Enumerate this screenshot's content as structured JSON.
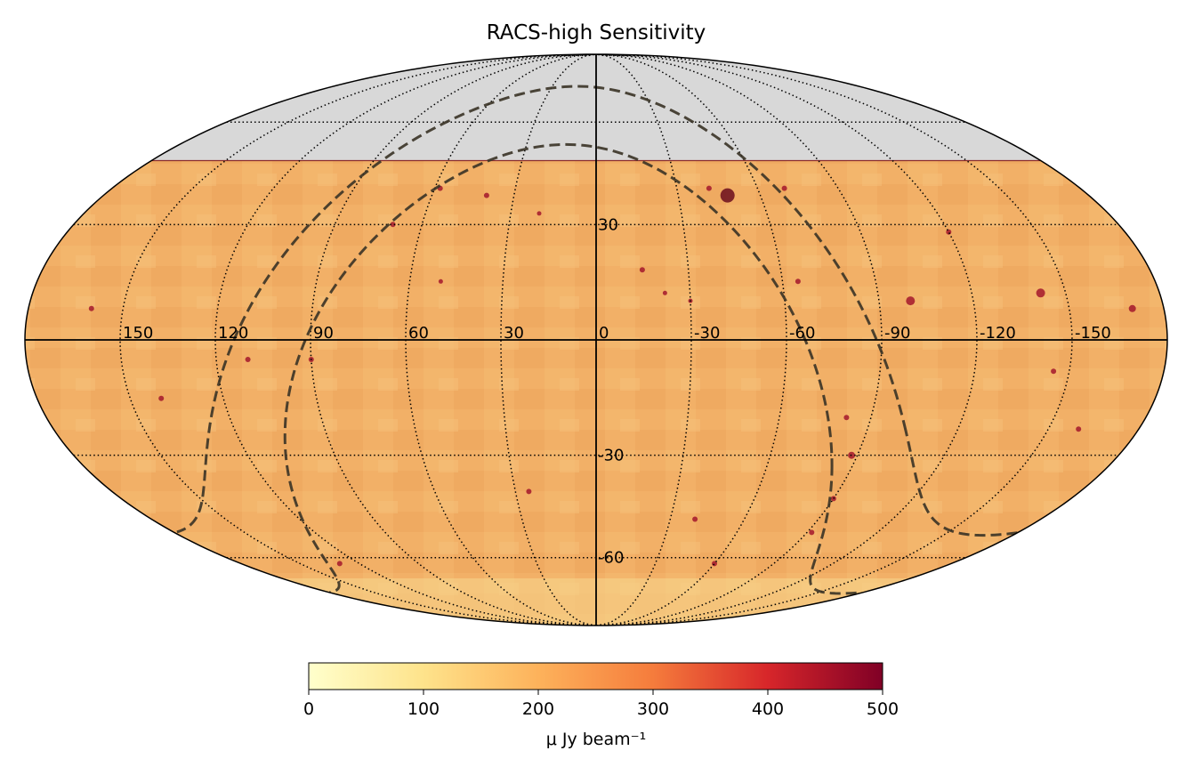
{
  "chart_data": {
    "type": "heatmap",
    "projection": "mollweide",
    "title": "RACS-high Sensitivity",
    "longitude_ticks": [
      150,
      120,
      90,
      60,
      30,
      0,
      -30,
      -60,
      -90,
      -120,
      -150
    ],
    "longitude_tick_labels": [
      "150",
      "120",
      "90",
      "60",
      "30",
      "0",
      "-30",
      "-60",
      "-90",
      "-120",
      "-150"
    ],
    "latitude_ticks": [
      30,
      -30,
      -60
    ],
    "latitude_tick_labels": [
      "30",
      "-30",
      "-60"
    ],
    "grid_latitudes": [
      60,
      30,
      0,
      -30,
      -60
    ],
    "grid_longitudes": [
      150,
      120,
      90,
      60,
      30,
      -30,
      -60,
      -90,
      -120,
      -150
    ],
    "coverage_dec_range": [
      -90,
      48
    ],
    "no_data_region": "dec > 48",
    "typical_sensitivity": 210,
    "galactic_plane_lines": [
      {
        "name": "galactic plane upper boundary",
        "dashed": true
      },
      {
        "name": "galactic plane lower boundary",
        "dashed": true
      }
    ],
    "colorbar": {
      "label": "μ Jy beam⁻¹",
      "min": 0,
      "max": 500,
      "ticks": [
        0,
        100,
        200,
        300,
        400,
        500
      ],
      "tick_labels": [
        "0",
        "100",
        "200",
        "300",
        "400",
        "500"
      ],
      "colormap": "YlOrRd"
    },
    "colors": {
      "no_data": "#d8d8d8",
      "coverage_boundary": "#8b2c2c",
      "grid": "#000000",
      "dashed_line": "#3a3326"
    }
  }
}
